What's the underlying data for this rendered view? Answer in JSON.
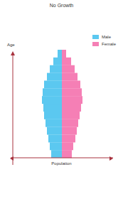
{
  "chart_data": {
    "type": "bar",
    "title": "No Growth",
    "x_label": "Population",
    "y_label": "Age",
    "orientation": "horizontal",
    "legend": "upper right",
    "tick_labels": false,
    "categories": [
      null,
      null,
      null,
      null,
      null,
      null,
      null,
      null,
      null,
      null,
      null,
      null,
      null,
      null
    ],
    "series": [
      {
        "name": "Male",
        "color": "#5bc8f0",
        "values": [
          15,
          17,
          19,
          21,
          23,
          25,
          26,
          28,
          27,
          25,
          21,
          17,
          12,
          6
        ]
      },
      {
        "name": "Female",
        "color": "#f57fb5",
        "values": [
          14,
          16,
          19,
          21,
          23,
          25,
          27,
          29,
          28,
          26,
          22,
          18,
          13,
          6
        ]
      }
    ],
    "xlim": [
      0,
      72
    ]
  }
}
